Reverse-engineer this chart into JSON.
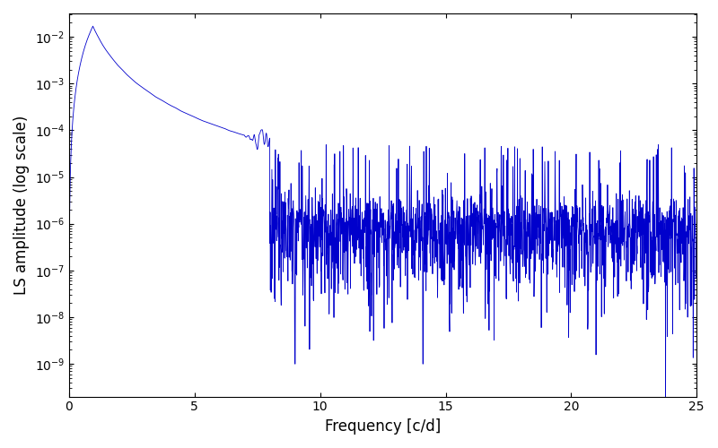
{
  "xlabel": "Frequency [c/d]",
  "ylabel": "LS amplitude (log scale)",
  "line_color": "#0000CC",
  "xlim": [
    0,
    25
  ],
  "ylim_log": [
    -9.7,
    -1.5
  ],
  "figsize": [
    8.0,
    5.0
  ],
  "dpi": 100,
  "background_color": "#ffffff",
  "seed": 42,
  "n_points": 2500,
  "peak_freq": 0.95,
  "peak_amp": 0.017,
  "noise_floor": 1e-06,
  "transition_freq": 8.0,
  "smooth_region_end": 7.0
}
